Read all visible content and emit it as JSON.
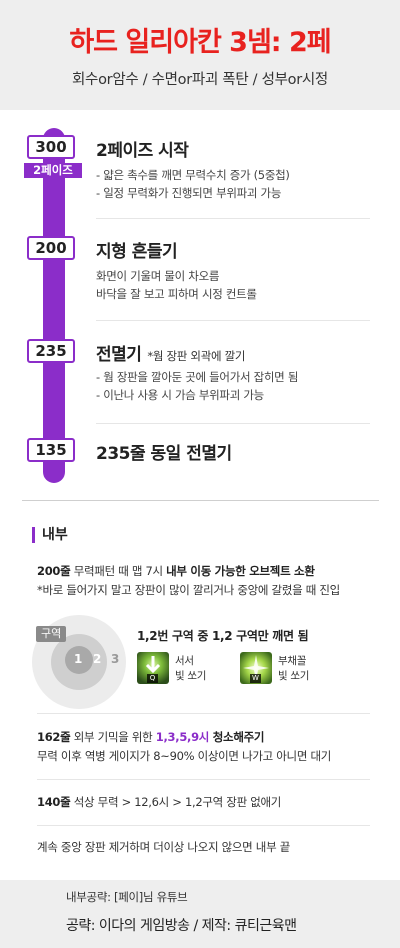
{
  "header": {
    "title": "하드 일리아칸 3넴: 2페",
    "subtitle": "회수or암수 / 수면or파괴 폭탄 / 성부or시정"
  },
  "stages": [
    {
      "num": "300",
      "tag": "2페이즈",
      "title": "2페이즈 시작",
      "note": "",
      "lines": [
        "- 얇은 촉수를 깨면 무력수치 증가 (5중첩)",
        "- 일정 무력화가 진행되면 부위파괴 가능"
      ]
    },
    {
      "num": "200",
      "tag": "",
      "title": "지형 흔들기",
      "note": "",
      "lines": [
        "화면이 기울며 물이 차오름",
        "바닥을 잘 보고 피하며 시정 컨트롤"
      ]
    },
    {
      "num": "235",
      "tag": "",
      "title": "전멸기",
      "note": "*웜 장판 외곽에 깔기",
      "lines": [
        "- 웜 장판을 깔아둔 곳에 들어가서 잡히면 됨",
        "- 이난나 사용 시 가슴 부위파괴 가능"
      ]
    },
    {
      "num": "135",
      "tag": "",
      "title": "235줄 동일 전멸기",
      "note": "",
      "lines": []
    }
  ],
  "inner": {
    "label": "내부",
    "p1_bold": "200줄",
    "p1_text": " 무력패턴 때 맵 7시 ",
    "p1_bold2": "내부 이동 가능한 오브젝트 소환",
    "p1_line2": "*바로 들어가지 말고 장판이 많이 깔리거나 중앙에 갈렸을 때 진입",
    "zone_label": "구역",
    "zone_1": "1",
    "zone_2": "2",
    "zone_3": "3",
    "zone_text": "1,2번 구역 중 1,2 구역만 깨면 됨",
    "skill1_key": "Q",
    "skill1_name": "서서\n빛 쏘기",
    "skill2_key": "W",
    "skill2_name": "부채꼴\n빛 쏘기",
    "p2_bold": "162줄",
    "p2_text": " 외부 기믹을 위한 ",
    "p2_hl": "1,3,5,9시",
    "p2_bold2": " 청소해주기",
    "p2_line2": "무력 이후 역병 게이지가 8~90% 이상이면 나가고 아니면 대기",
    "p3_bold": "140줄",
    "p3_text": " 석상 무력 > 12,6시 > 1,2구역 장판 없애기",
    "p4_text": "계속 중앙 장판 제거하며 더이상 나오지 않으면 내부 끝"
  },
  "footer": {
    "line1": "내부공략: [페이]님 유튜브",
    "line2": "공략: 이다의 게임방송 / 제작: 큐티근육맨"
  },
  "colors": {
    "accent": "#8b2dc9",
    "title": "#e8221f"
  }
}
